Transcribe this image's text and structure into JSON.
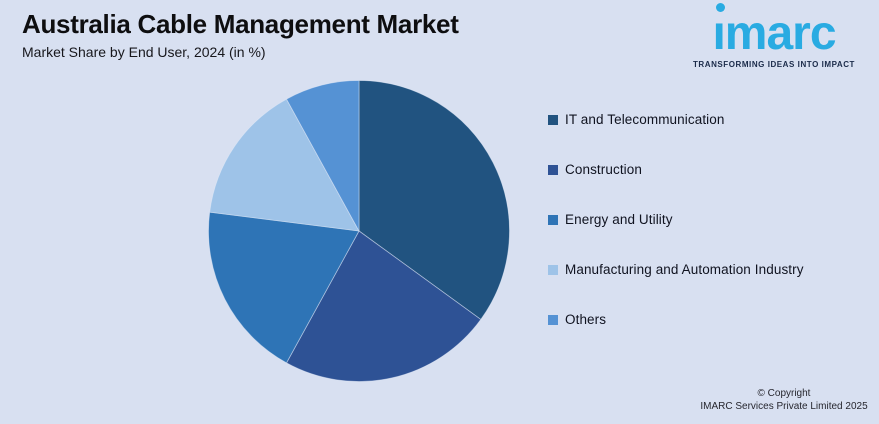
{
  "header": {
    "title": "Australia Cable Management Market",
    "subtitle": "Market Share by End User, 2024 (in %)"
  },
  "logo": {
    "brand": "ımarc",
    "brand_name": "imarc",
    "tagline": "TRANSFORMING IDEAS INTO IMPACT",
    "brand_color": "#29abe2",
    "tagline_color": "#1b2b4a"
  },
  "chart_data": {
    "type": "pie",
    "title": "Australia Cable Management Market",
    "subtitle": "Market Share by End User, 2024 (in %)",
    "unit": "percent",
    "start_angle_deg": 0,
    "direction": "clockwise",
    "legend_position": "right",
    "slices": [
      {
        "label": "IT and Telecommunication",
        "value": 35,
        "color": "#215380"
      },
      {
        "label": "Construction",
        "value": 23,
        "color": "#2e5295"
      },
      {
        "label": "Energy and Utility",
        "value": 19,
        "color": "#2e74b6"
      },
      {
        "label": "Manufacturing and Automation Industry",
        "value": 15,
        "color": "#9ec3e8"
      },
      {
        "label": "Others",
        "value": 8,
        "color": "#5592d4"
      }
    ]
  },
  "footer": {
    "copyright_line1": "© Copyright",
    "copyright_line2": "IMARC Services Private Limited 2025"
  },
  "colors": {
    "background": "#d8e0f1",
    "title_text": "#0e0e10",
    "legend_text": "#101320",
    "slice_separator": "rgba(225,234,248,0.55)"
  }
}
